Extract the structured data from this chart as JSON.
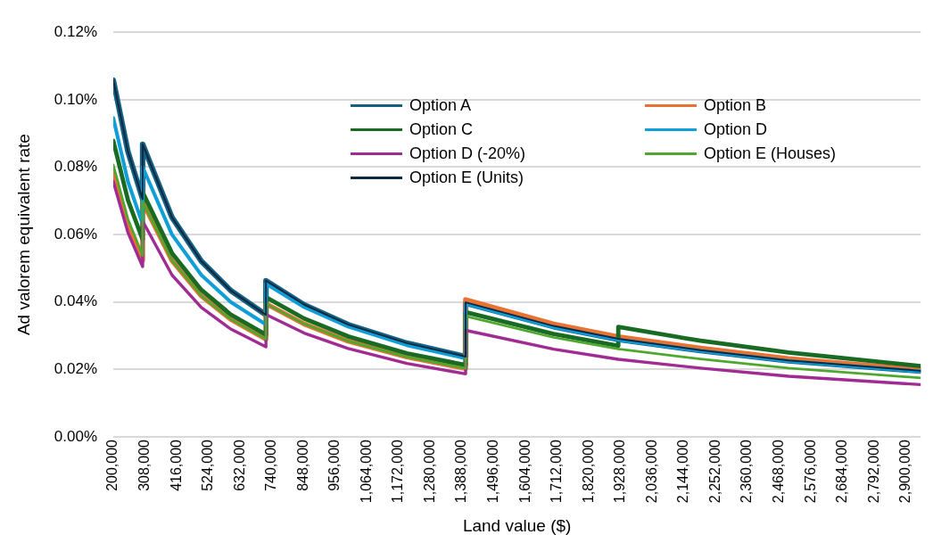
{
  "chart_data": {
    "type": "line",
    "xlabel": "Land value ($)",
    "ylabel": "Ad valorem equivalent rate",
    "x": [
      200000,
      250000,
      300000,
      300000,
      400000,
      500000,
      600000,
      720000,
      720000,
      850000,
      1000000,
      1200000,
      1400000,
      1400000,
      1700000,
      1920000,
      1920000,
      2200000,
      2500000,
      2950000
    ],
    "series": [
      {
        "name": "Option A",
        "color": "#156082",
        "values": [
          0.1058,
          0.0846,
          0.0705,
          0.0868,
          0.0651,
          0.0521,
          0.0434,
          0.0362,
          0.0463,
          0.0392,
          0.0333,
          0.0278,
          0.0238,
          0.0397,
          0.0327,
          0.0289,
          0.0289,
          0.0256,
          0.0226,
          0.0195
        ]
      },
      {
        "name": "Option B",
        "color": "#e97132",
        "values": [
          0.0785,
          0.0628,
          0.0523,
          0.0697,
          0.0523,
          0.0418,
          0.0349,
          0.029,
          0.0395,
          0.0335,
          0.0284,
          0.0237,
          0.0203,
          0.0407,
          0.0335,
          0.0297,
          0.0297,
          0.0263,
          0.0232,
          0.0199
        ]
      },
      {
        "name": "Option C",
        "color": "#196b24",
        "values": [
          0.0878,
          0.0702,
          0.0585,
          0.0726,
          0.0545,
          0.0436,
          0.0363,
          0.0303,
          0.0414,
          0.0351,
          0.0298,
          0.0248,
          0.0213,
          0.037,
          0.0305,
          0.027,
          0.0326,
          0.0285,
          0.025,
          0.021
        ]
      },
      {
        "name": "Option D",
        "color": "#0f9ed5",
        "values": [
          0.0946,
          0.0757,
          0.0631,
          0.08,
          0.06,
          0.048,
          0.04,
          0.0333,
          0.0454,
          0.0385,
          0.0327,
          0.0272,
          0.0233,
          0.0395,
          0.0325,
          0.0288,
          0.0288,
          0.0255,
          0.0225,
          0.0194
        ]
      },
      {
        "name": "Option D (-20%)",
        "color": "#a02b93",
        "values": [
          0.0757,
          0.0606,
          0.0505,
          0.064,
          0.048,
          0.0384,
          0.032,
          0.0267,
          0.0363,
          0.0308,
          0.0262,
          0.0218,
          0.0187,
          0.0316,
          0.026,
          0.023,
          0.023,
          0.0204,
          0.018,
          0.0155
        ]
      },
      {
        "name": "Option E (Houses)",
        "color": "#4ea72e",
        "values": [
          0.0807,
          0.0646,
          0.0538,
          0.0697,
          0.0523,
          0.0418,
          0.0349,
          0.029,
          0.0395,
          0.0335,
          0.0284,
          0.0237,
          0.0203,
          0.0358,
          0.0295,
          0.0261,
          0.0261,
          0.0231,
          0.0204,
          0.0175
        ]
      },
      {
        "name": "Option E (Units)",
        "color": "#0e2841",
        "values": [
          0.1058,
          0.0846,
          0.0705,
          0.0868,
          0.0651,
          0.0521,
          0.0434,
          0.0362,
          0.0463,
          0.0392,
          0.0333,
          0.0278,
          0.0238,
          0.0399,
          0.0329,
          0.0291,
          0.0291,
          0.0257,
          0.0227,
          0.0196
        ]
      }
    ],
    "xlim": [
      200000,
      2950000
    ],
    "xticks": [
      {
        "value": 200000,
        "label": "200,000"
      },
      {
        "value": 308000,
        "label": "308,000"
      },
      {
        "value": 416000,
        "label": "416,000"
      },
      {
        "value": 524000,
        "label": "524,000"
      },
      {
        "value": 632000,
        "label": "632,000"
      },
      {
        "value": 740000,
        "label": "740,000"
      },
      {
        "value": 848000,
        "label": "848,000"
      },
      {
        "value": 956000,
        "label": "956,000"
      },
      {
        "value": 1064000,
        "label": "1,064,000"
      },
      {
        "value": 1172000,
        "label": "1,172,000"
      },
      {
        "value": 1280000,
        "label": "1,280,000"
      },
      {
        "value": 1388000,
        "label": "1,388,000"
      },
      {
        "value": 1496000,
        "label": "1,496,000"
      },
      {
        "value": 1604000,
        "label": "1,604,000"
      },
      {
        "value": 1712000,
        "label": "1,712,000"
      },
      {
        "value": 1820000,
        "label": "1,820,000"
      },
      {
        "value": 1928000,
        "label": "1,928,000"
      },
      {
        "value": 2036000,
        "label": "2,036,000"
      },
      {
        "value": 2144000,
        "label": "2,144,000"
      },
      {
        "value": 2252000,
        "label": "2,252,000"
      },
      {
        "value": 2360000,
        "label": "2,360,000"
      },
      {
        "value": 2468000,
        "label": "2,468,000"
      },
      {
        "value": 2576000,
        "label": "2,576,000"
      },
      {
        "value": 2684000,
        "label": "2,684,000"
      },
      {
        "value": 2792000,
        "label": "2,792,000"
      },
      {
        "value": 2900000,
        "label": "2,900,000"
      }
    ],
    "ylim": [
      0,
      0.12
    ],
    "yticks": [
      {
        "value": 0,
        "label": "0.00%"
      },
      {
        "value": 0.02,
        "label": "0.02%"
      },
      {
        "value": 0.04,
        "label": "0.04%"
      },
      {
        "value": 0.06,
        "label": "0.06%"
      },
      {
        "value": 0.08,
        "label": "0.08%"
      },
      {
        "value": 0.1,
        "label": "0.10%"
      },
      {
        "value": 0.12,
        "label": "0.12%"
      }
    ],
    "grid": "y",
    "legend": "top right",
    "marker": "none",
    "line_style": "solid"
  }
}
